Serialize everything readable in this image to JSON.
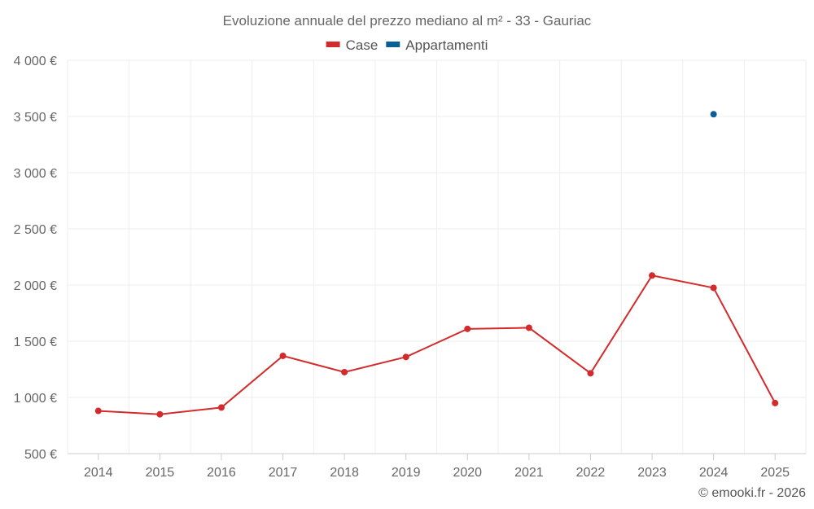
{
  "chart_data": {
    "type": "line",
    "title": "Evoluzione annuale del prezzo mediano al m² - 33 - Gauriac",
    "categories": [
      "2014",
      "2015",
      "2016",
      "2017",
      "2018",
      "2019",
      "2020",
      "2021",
      "2022",
      "2023",
      "2024",
      "2025"
    ],
    "y_tick_labels": [
      "500 €",
      "1 000 €",
      "1 500 €",
      "2 000 €",
      "2 500 €",
      "3 000 €",
      "3 500 €",
      "4 000 €"
    ],
    "y_ticks": [
      500,
      1000,
      1500,
      2000,
      2500,
      3000,
      3500,
      4000
    ],
    "ylim": [
      500,
      4000
    ],
    "xlabel": "",
    "ylabel": "",
    "grid": true,
    "legend_position": "top-center",
    "series": [
      {
        "name": "Case",
        "color": "#d32b2b",
        "values": [
          880,
          850,
          910,
          1370,
          1225,
          1360,
          1610,
          1620,
          1215,
          2085,
          1975,
          950
        ]
      },
      {
        "name": "Appartamenti",
        "color": "#0a5f95",
        "values": [
          null,
          null,
          null,
          null,
          null,
          null,
          null,
          null,
          null,
          null,
          3520,
          null
        ]
      }
    ],
    "credit": "© emooki.fr - 2026"
  }
}
